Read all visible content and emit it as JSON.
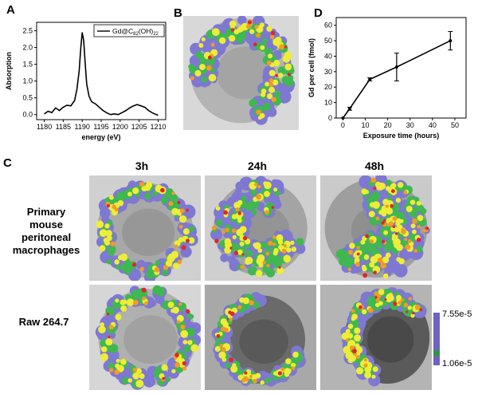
{
  "panels": {
    "a": "A",
    "b": "B",
    "c": "C",
    "d": "D"
  },
  "chart_data": [
    {
      "type": "line",
      "panel": "A",
      "xlabel": "energy (eV)",
      "ylabel": "Absorption",
      "legend": "Gd@C82(OH)22",
      "xlim": [
        1178,
        1212
      ],
      "ylim": [
        -0.15,
        2.75
      ],
      "xticks": [
        1180,
        1185,
        1190,
        1195,
        1200,
        1205,
        1210
      ],
      "yticks": [
        0.0,
        0.5,
        1.0,
        1.5,
        2.0,
        2.5
      ],
      "x": [
        1180,
        1181,
        1182,
        1183,
        1184,
        1185,
        1186,
        1187,
        1188,
        1188.6,
        1189.2,
        1189.6,
        1190.0,
        1190.4,
        1190.8,
        1191.2,
        1191.8,
        1192.5,
        1193.5,
        1194.5,
        1195.5,
        1196.5,
        1197.5,
        1198.5,
        1199.5,
        1200.5,
        1201.5,
        1202.5,
        1203.5,
        1204.5,
        1205.5,
        1206.5,
        1207.5,
        1208.5,
        1209.5,
        1210
      ],
      "y": [
        0.02,
        0.1,
        0.06,
        0.2,
        0.12,
        0.22,
        0.28,
        0.26,
        0.42,
        0.75,
        1.3,
        1.95,
        2.45,
        2.2,
        1.5,
        0.9,
        0.55,
        0.38,
        0.32,
        0.22,
        0.12,
        0.05,
        0.0,
        0.02,
        0.0,
        0.06,
        0.12,
        0.2,
        0.26,
        0.3,
        0.26,
        0.22,
        0.12,
        0.05,
        0.0,
        -0.02
      ]
    },
    {
      "type": "line",
      "panel": "D",
      "xlabel": "Exposure time (hours)",
      "ylabel": "Gd per cell (fmol)",
      "xlim": [
        -3,
        55
      ],
      "ylim": [
        0,
        65
      ],
      "xticks": [
        0,
        10,
        20,
        30,
        40,
        50
      ],
      "yticks": [
        0,
        10,
        20,
        30,
        40,
        50,
        60
      ],
      "x": [
        0,
        3,
        12,
        24,
        48
      ],
      "y": [
        0,
        6,
        25,
        33,
        50
      ],
      "err": [
        0,
        1,
        1,
        9,
        6
      ]
    }
  ],
  "grid": {
    "columns": [
      "3h",
      "24h",
      "48h"
    ],
    "rows": [
      {
        "label": [
          "Primary",
          "mouse",
          "peritoneal",
          "macrophages"
        ]
      },
      {
        "label": [
          "Raw 264.7"
        ]
      }
    ]
  },
  "scale": {
    "max": "7.55e-5",
    "min": "1.06e-5",
    "colors": [
      "#6e64c0",
      "#2a9a3a",
      "#e8e61e",
      "#f4a020",
      "#d8241e"
    ]
  },
  "colors": {
    "blue": "#7e78d2",
    "green": "#3fb850",
    "yellow": "#eded37",
    "orange": "#f29b25",
    "red": "#e0252a"
  }
}
